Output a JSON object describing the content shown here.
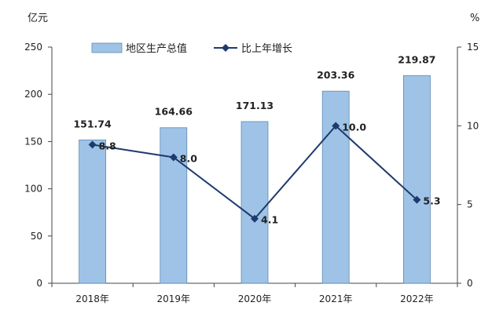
{
  "chart_data": {
    "type": "bar",
    "categories": [
      "2018年",
      "2019年",
      "2020年",
      "2021年",
      "2022年"
    ],
    "series": [
      {
        "name": "地区生产总值",
        "type": "bar",
        "axis": "left",
        "values": [
          151.74,
          164.66,
          171.13,
          203.36,
          219.87
        ],
        "labels": [
          "151.74",
          "164.66",
          "171.13",
          "203.36",
          "219.87"
        ],
        "color": "#9ec3e6"
      },
      {
        "name": "比上年增长",
        "type": "line",
        "axis": "right",
        "values": [
          8.8,
          8.0,
          4.1,
          10.0,
          5.3
        ],
        "labels": [
          "8.8",
          "8.0",
          "4.1",
          "10.0",
          "5.3"
        ],
        "color": "#1f3a6e"
      }
    ],
    "y_left": {
      "unit": "亿元",
      "ylim": [
        0,
        250
      ],
      "ticks": [
        "0",
        "50",
        "100",
        "150",
        "200",
        "250"
      ]
    },
    "y_right": {
      "unit": "%",
      "ylim": [
        0,
        15
      ],
      "ticks": [
        "0",
        "5",
        "10",
        "15"
      ]
    },
    "legend": "top-center",
    "grid": false
  }
}
